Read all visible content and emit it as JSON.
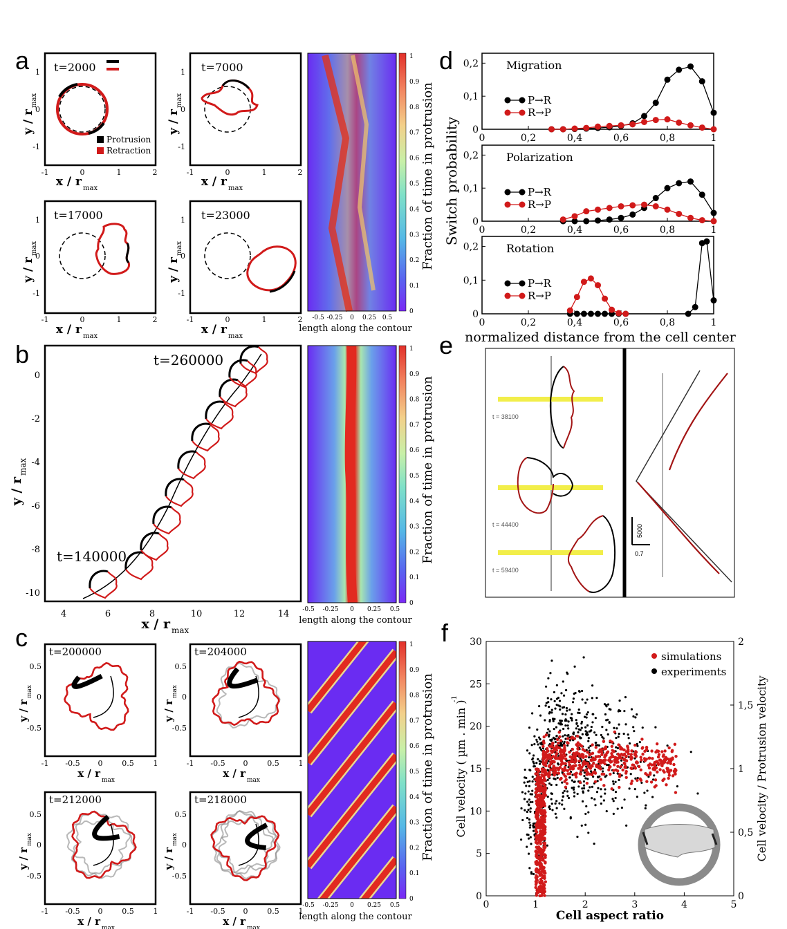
{
  "panels": {
    "a": {
      "label": "a",
      "times": [
        "t=2000",
        "t=7000",
        "t=17000",
        "t=23000"
      ],
      "legend": [
        "Protrusion",
        "Retraction"
      ],
      "xlabel_main": "x / r",
      "ylabel_main": "y / r",
      "sub": "max",
      "xticks": [
        "-1",
        "0",
        "1",
        "2"
      ],
      "yticks": [
        "1",
        "0",
        "-1"
      ],
      "kymo_xlabel": "length along the contour",
      "kymo_xticks": [
        "-0.5",
        "-0.25",
        "0",
        "0.25",
        "0.5"
      ]
    },
    "b": {
      "label": "b",
      "times": [
        "t=260000",
        "t=140000"
      ],
      "xticks": [
        "4",
        "6",
        "8",
        "10",
        "12",
        "14"
      ],
      "yticks": [
        "0",
        "-2",
        "-4",
        "-6",
        "-8",
        "-10"
      ],
      "kymo_xlabel": "length along the contour",
      "kymo_xticks": [
        "-0.5",
        "-0.25",
        "0",
        "0.25",
        "0.5"
      ]
    },
    "c": {
      "label": "c",
      "times": [
        "t=200000",
        "t=204000",
        "t=212000",
        "t=218000"
      ],
      "xticks": [
        "-1",
        "-0.5",
        "0",
        "0.5",
        "1"
      ],
      "yticks": [
        "0.5",
        "0",
        "-0.5"
      ],
      "kymo_xlabel": "length along the contour",
      "kymo_xticks": [
        "-0.5",
        "-0.25",
        "0",
        "0.25",
        "0.5"
      ]
    },
    "d": {
      "label": "d",
      "ylabel": "Switch probability",
      "xlabel": "normalized distance from the cell center"
    },
    "e": {
      "label": "e",
      "times": [
        "t = 38100",
        "t = 44400",
        "t = 59400"
      ],
      "scale_time": "5000",
      "scale_x": "0.7"
    },
    "f": {
      "label": "f"
    }
  },
  "colorbar": {
    "label": "Fraction of time in protrusion",
    "ticks": [
      "1",
      "0.9",
      "0.8",
      "0.7",
      "0.6",
      "0.5",
      "0.4",
      "0.3",
      "0.2",
      "0.1",
      "0"
    ]
  },
  "colors": {
    "protrusion": "#000000",
    "retraction": "#d11a1a",
    "kymo_bg": "#6a2cf2",
    "highlight": "#f2ee4a"
  },
  "chart_data": [
    {
      "type": "line",
      "title": "Migration",
      "xlim": [
        0,
        1
      ],
      "ylim": [
        0,
        0.23
      ],
      "xticks": [
        "0",
        "0,2",
        "0,4",
        "0,6",
        "0,8",
        "1"
      ],
      "yticks": [
        "0",
        "0,1",
        "0,2"
      ],
      "series": [
        {
          "name": "P→R",
          "x": [
            0.3,
            0.35,
            0.4,
            0.45,
            0.5,
            0.55,
            0.6,
            0.65,
            0.7,
            0.75,
            0.8,
            0.85,
            0.9,
            0.95,
            1.0
          ],
          "y": [
            0,
            0,
            0.001,
            0.002,
            0.004,
            0.006,
            0.01,
            0.018,
            0.04,
            0.08,
            0.15,
            0.18,
            0.19,
            0.145,
            0.05
          ]
        },
        {
          "name": "R→P",
          "x": [
            0.3,
            0.35,
            0.4,
            0.45,
            0.5,
            0.55,
            0.6,
            0.65,
            0.7,
            0.75,
            0.8,
            0.85,
            0.9,
            0.95,
            1.0
          ],
          "y": [
            0,
            0,
            0.002,
            0.004,
            0.008,
            0.01,
            0.012,
            0.015,
            0.022,
            0.028,
            0.03,
            0.02,
            0.012,
            0.005,
            0
          ]
        }
      ]
    },
    {
      "type": "line",
      "title": "Polarization",
      "xlim": [
        0,
        1
      ],
      "ylim": [
        0,
        0.23
      ],
      "xticks": [
        "0",
        "0,2",
        "0,4",
        "0,6",
        "0,8",
        "1"
      ],
      "yticks": [
        "0",
        "0,1",
        "0,2"
      ],
      "series": [
        {
          "name": "P→R",
          "x": [
            0.35,
            0.4,
            0.45,
            0.5,
            0.55,
            0.6,
            0.65,
            0.7,
            0.75,
            0.8,
            0.85,
            0.9,
            0.95,
            1.0
          ],
          "y": [
            0,
            0,
            0,
            0.002,
            0.005,
            0.01,
            0.02,
            0.04,
            0.07,
            0.1,
            0.115,
            0.12,
            0.08,
            0.025
          ]
        },
        {
          "name": "R→P",
          "x": [
            0.35,
            0.4,
            0.45,
            0.5,
            0.55,
            0.6,
            0.65,
            0.7,
            0.75,
            0.8,
            0.85,
            0.9,
            0.95,
            1.0
          ],
          "y": [
            0.005,
            0.015,
            0.03,
            0.035,
            0.04,
            0.045,
            0.048,
            0.05,
            0.045,
            0.035,
            0.022,
            0.01,
            0.003,
            0
          ]
        }
      ]
    },
    {
      "type": "line",
      "title": "Rotation",
      "xlim": [
        0,
        1
      ],
      "ylim": [
        0,
        0.23
      ],
      "xticks": [
        "0",
        "0,2",
        "0,4",
        "0,6",
        "0,8",
        "1"
      ],
      "yticks": [
        "0",
        "0,1",
        "0,2"
      ],
      "series": [
        {
          "name": "P→R",
          "x": [
            0.38,
            0.41,
            0.44,
            0.47,
            0.5,
            0.53,
            0.56,
            0.59,
            0.62,
            0.89,
            0.92,
            0.95,
            0.97,
            1.0
          ],
          "y": [
            0,
            0,
            0,
            0,
            0,
            0,
            0,
            0,
            0,
            0,
            0.02,
            0.21,
            0.215,
            0.04
          ]
        },
        {
          "name": "R→P",
          "x": [
            0.38,
            0.41,
            0.44,
            0.47,
            0.5,
            0.53,
            0.56,
            0.59,
            0.62
          ],
          "y": [
            0.01,
            0.05,
            0.095,
            0.105,
            0.085,
            0.045,
            0.012,
            0.002,
            0
          ]
        }
      ]
    },
    {
      "type": "scatter",
      "xlabel": "Cell aspect ratio",
      "ylabel": "Cell velocity ( µm . min )",
      "ylabel_sup": "-1",
      "y2label": "Cell velocity / Protrusion velocity",
      "xlim": [
        0,
        5
      ],
      "ylim": [
        0,
        30
      ],
      "y2lim": [
        0,
        2
      ],
      "xticks": [
        "0",
        "1",
        "2",
        "3",
        "4",
        "5"
      ],
      "yticks": [
        "0",
        "5",
        "10",
        "15",
        "20",
        "25",
        "30"
      ],
      "y2ticks": [
        "0",
        "0,5",
        "1",
        "1,5",
        "2"
      ],
      "legend": [
        "simulations",
        "experiments"
      ],
      "series": [
        {
          "name": "simulations",
          "x": [
            1.0,
            1.05,
            1.1,
            1.15,
            1.2,
            1.3,
            1.5,
            1.8,
            2.2,
            2.6,
            3.0,
            3.4,
            3.8
          ],
          "y": [
            2,
            5,
            9,
            13,
            15,
            16,
            16,
            16.5,
            16.5,
            16,
            16,
            15.5,
            15
          ]
        },
        {
          "name": "experiments",
          "x": [
            0.7,
            0.9,
            1.1,
            1.3,
            1.5,
            1.8,
            2.0,
            2.3,
            2.6,
            3.0,
            3.5,
            4.0,
            4.5
          ],
          "y": [
            10,
            14,
            15,
            18,
            20,
            19,
            18,
            17,
            16,
            16,
            15,
            15,
            14
          ]
        }
      ]
    }
  ]
}
